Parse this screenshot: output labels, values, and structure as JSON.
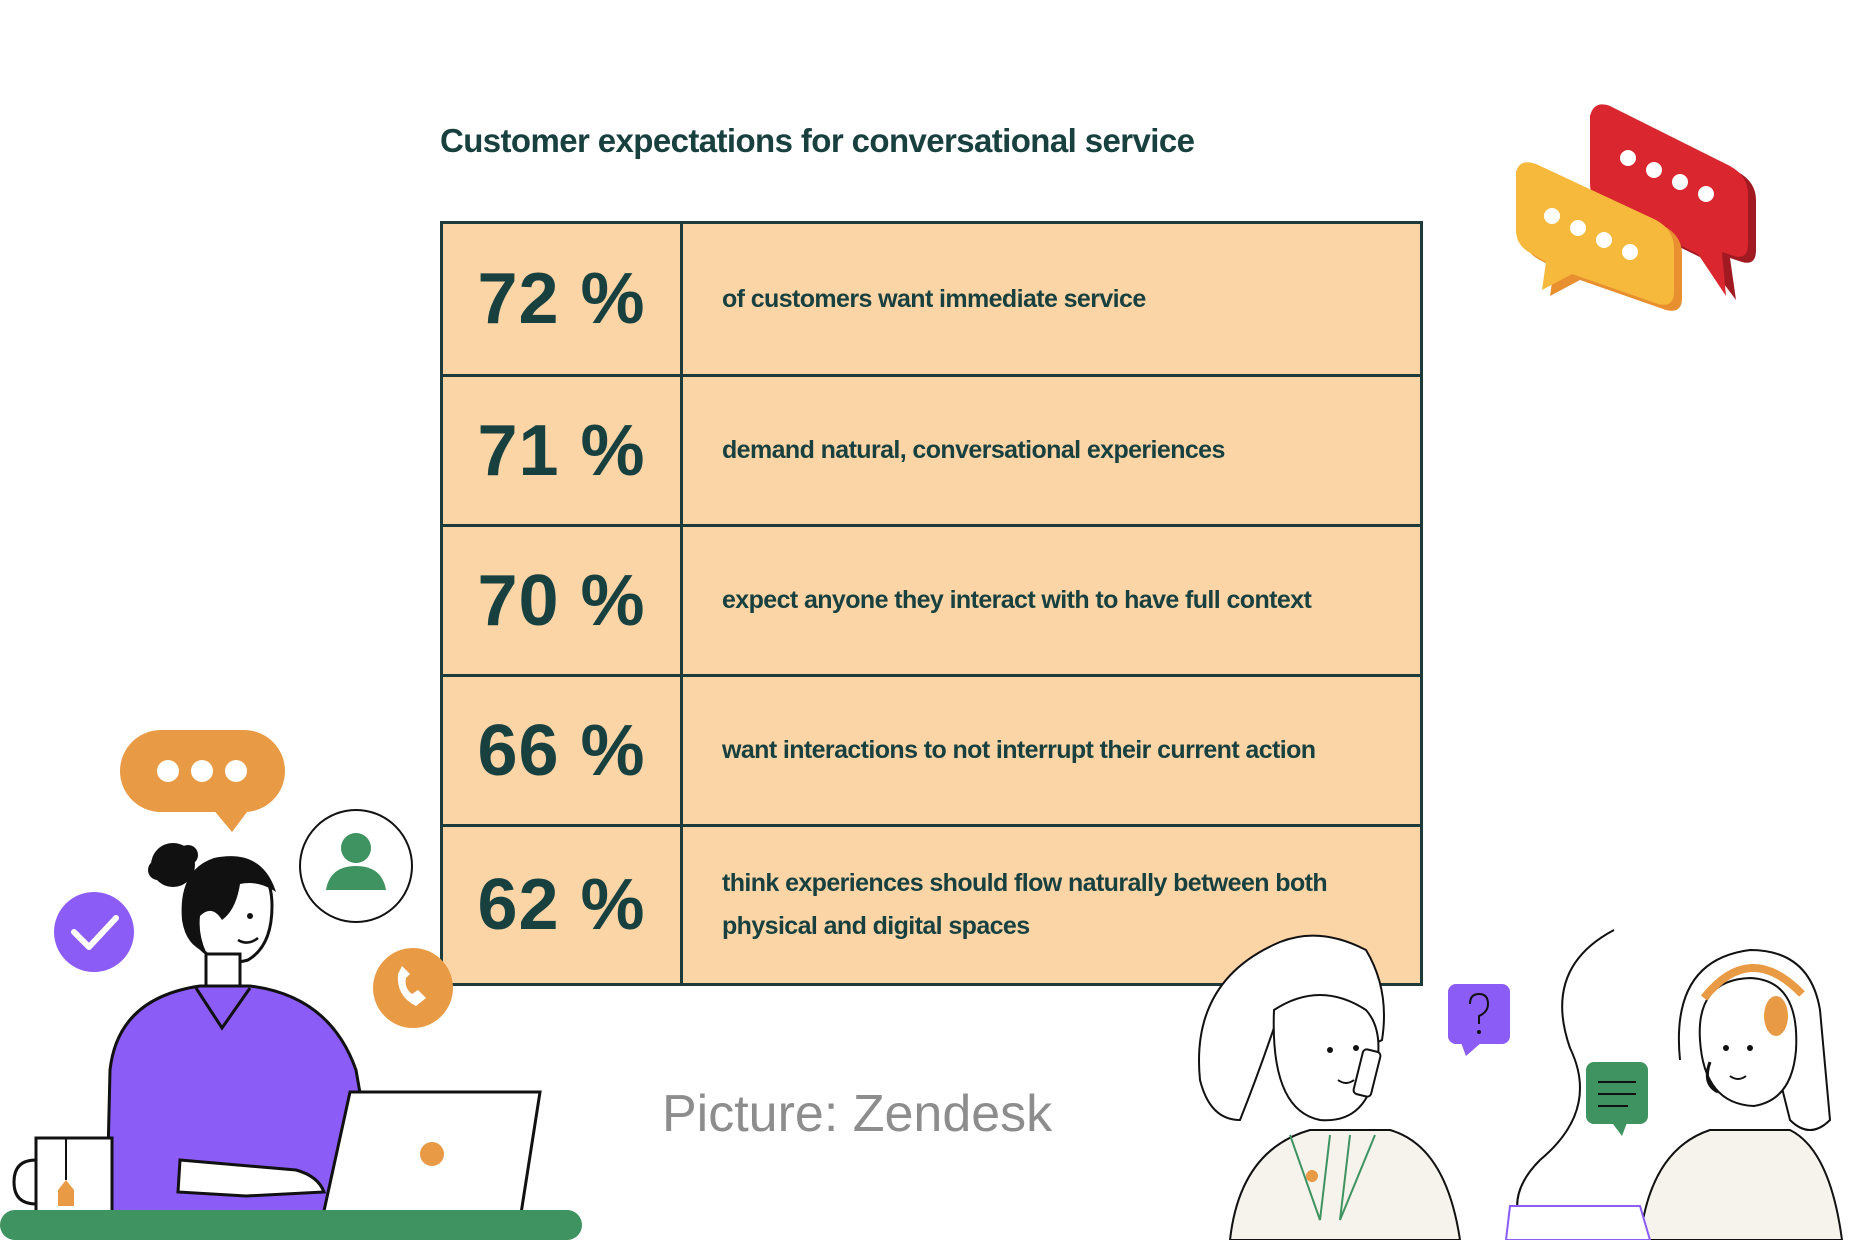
{
  "title": "Customer expectations for conversational service",
  "stats": [
    {
      "percent": "72 %",
      "text": "of customers want immediate service"
    },
    {
      "percent": "71 %",
      "text": "demand natural, conversational experiences"
    },
    {
      "percent": "70 %",
      "text": "expect anyone they interact with to have full context"
    },
    {
      "percent": "66 %",
      "text": "want interactions to not interrupt their current action"
    },
    {
      "percent": "62 %",
      "text": "think experiences should flow naturally between both physical and digital spaces"
    }
  ],
  "caption": "Picture: Zendesk",
  "colors": {
    "table_fill": "#fcd5a7",
    "table_border": "#1d3b3b",
    "text_dark": "#17403f",
    "caption_gray": "#8d8d8d",
    "orange": "#e99a45",
    "purple": "#8b5cf6",
    "green": "#3f9360",
    "red": "#d9262f",
    "yellow": "#f7b93c"
  },
  "icons": [
    "speech-bubbles-3d-icon",
    "chat-bubble-icon",
    "user-icon",
    "checkmark-icon",
    "phone-icon",
    "question-bubble-icon",
    "message-bubble-icon"
  ]
}
